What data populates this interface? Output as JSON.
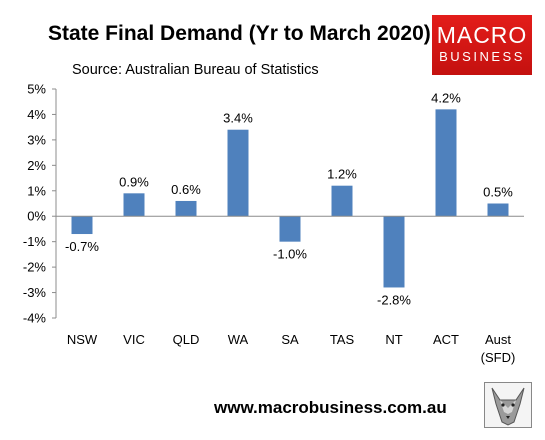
{
  "title": "State Final Demand (Yr to March 2020)",
  "subtitle": "Source: Australian Bureau of Statistics",
  "logo": {
    "line1": "MACRO",
    "line2": "BUSINESS"
  },
  "footer": "www.macrobusiness.com.au",
  "colors": {
    "bar": "#4f81bd",
    "logo": "#e31d1a"
  },
  "chart_data": {
    "type": "bar",
    "title": "State Final Demand (Yr to March 2020)",
    "categories": [
      "NSW",
      "VIC",
      "QLD",
      "WA",
      "SA",
      "TAS",
      "NT",
      "ACT",
      "Aust\n(SFD)"
    ],
    "values": [
      -0.7,
      0.9,
      0.6,
      3.4,
      -1.0,
      1.2,
      -2.8,
      4.2,
      0.5
    ],
    "value_labels": [
      "-0.7%",
      "0.9%",
      "0.6%",
      "3.4%",
      "-1.0%",
      "1.2%",
      "-2.8%",
      "4.2%",
      "0.5%"
    ],
    "ylim": [
      -4,
      5
    ],
    "yticks": [
      5,
      4,
      3,
      2,
      1,
      0,
      -1,
      -2,
      -3,
      -4
    ],
    "ytick_labels": [
      "5%",
      "4%",
      "3%",
      "2%",
      "1%",
      "0%",
      "-1%",
      "-2%",
      "-3%",
      "-4%"
    ],
    "xlabel": "",
    "ylabel": "",
    "grid": false,
    "legend": "none"
  }
}
